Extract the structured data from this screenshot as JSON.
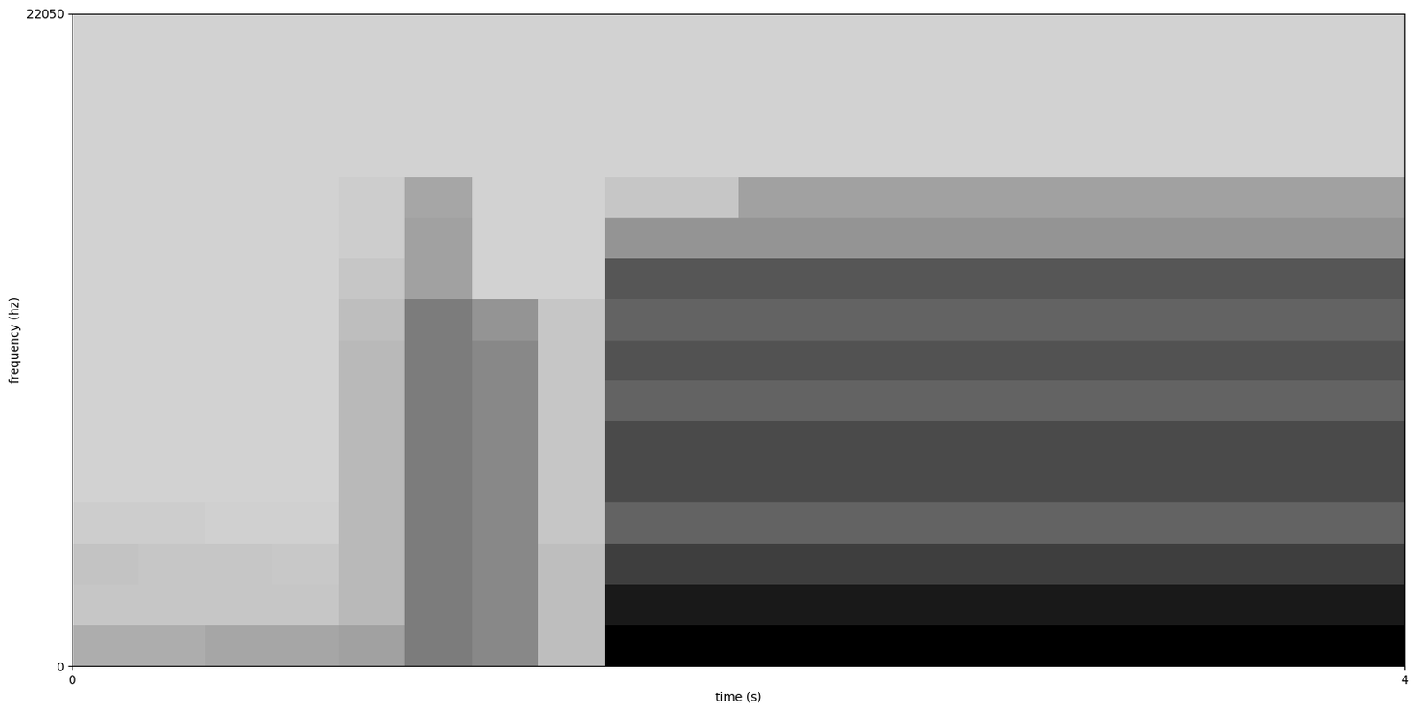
{
  "chart_data": {
    "type": "heatmap",
    "x_label": "time (s)",
    "y_label": "frequency (hz)",
    "xlim": [
      0,
      4
    ],
    "ylim": [
      0,
      22050
    ],
    "xticks": [
      0,
      4
    ],
    "yticks": [
      0,
      22050
    ],
    "grid": false,
    "x_bins": [
      0,
      0.2,
      0.4,
      0.6,
      0.8,
      1.0,
      1.2,
      1.4,
      1.6,
      1.8,
      2.0,
      2.2,
      2.4,
      2.6,
      2.8,
      3.0,
      3.2,
      3.4,
      3.6,
      3.8,
      4.0
    ],
    "y_bins": [
      0,
      1378.125,
      2756.25,
      4134.375,
      5512.5,
      6890.625,
      8268.75,
      9646.875,
      11025,
      12403.125,
      13781.25,
      15159.375,
      16537.5,
      17915.625,
      19293.75,
      20671.875,
      22050
    ],
    "cells": [
      [
        25,
        25,
        28,
        28,
        30,
        45,
        40,
        18,
        95,
        95,
        95,
        95,
        95,
        95,
        95,
        95,
        95,
        95,
        95,
        95
      ],
      [
        15,
        15,
        15,
        15,
        20,
        45,
        40,
        18,
        85,
        85,
        85,
        85,
        85,
        85,
        85,
        85,
        85,
        85,
        85,
        85
      ],
      [
        16,
        15,
        15,
        14,
        20,
        45,
        40,
        18,
        70,
        70,
        70,
        70,
        70,
        70,
        70,
        70,
        70,
        70,
        70,
        70
      ],
      [
        12,
        12,
        11,
        11,
        20,
        45,
        40,
        15,
        55,
        55,
        55,
        55,
        55,
        55,
        55,
        55,
        55,
        55,
        55,
        55
      ],
      [
        10,
        10,
        10,
        10,
        20,
        45,
        40,
        15,
        65,
        65,
        65,
        65,
        65,
        65,
        65,
        65,
        65,
        65,
        65,
        65
      ],
      [
        10,
        10,
        10,
        10,
        20,
        45,
        40,
        15,
        65,
        65,
        65,
        65,
        65,
        65,
        65,
        65,
        65,
        65,
        65,
        65
      ],
      [
        10,
        10,
        10,
        10,
        20,
        45,
        40,
        15,
        55,
        55,
        55,
        55,
        55,
        55,
        55,
        55,
        55,
        55,
        55,
        55
      ],
      [
        10,
        10,
        10,
        10,
        20,
        45,
        40,
        15,
        62,
        62,
        62,
        62,
        62,
        62,
        62,
        62,
        62,
        62,
        62,
        62
      ],
      [
        10,
        10,
        10,
        10,
        18,
        45,
        35,
        15,
        55,
        55,
        55,
        55,
        55,
        55,
        55,
        55,
        55,
        55,
        55,
        55
      ],
      [
        10,
        10,
        10,
        10,
        15,
        30,
        10,
        10,
        60,
        60,
        60,
        60,
        60,
        60,
        60,
        60,
        60,
        60,
        60,
        60
      ],
      [
        10,
        10,
        10,
        10,
        12,
        30,
        10,
        10,
        35,
        35,
        35,
        35,
        35,
        35,
        35,
        35,
        35,
        35,
        35,
        35
      ],
      [
        10,
        10,
        10,
        10,
        12,
        28,
        10,
        10,
        15,
        15,
        30,
        30,
        30,
        30,
        30,
        30,
        30,
        30,
        30,
        30
      ],
      [
        10,
        10,
        10,
        10,
        10,
        10,
        10,
        10,
        10,
        10,
        10,
        10,
        10,
        10,
        10,
        10,
        10,
        10,
        10,
        10
      ],
      [
        10,
        10,
        10,
        10,
        10,
        10,
        10,
        10,
        10,
        10,
        10,
        10,
        10,
        10,
        10,
        10,
        10,
        10,
        10,
        10
      ],
      [
        10,
        10,
        10,
        10,
        10,
        10,
        10,
        10,
        10,
        10,
        10,
        10,
        10,
        10,
        10,
        10,
        10,
        10,
        10,
        10
      ],
      [
        10,
        10,
        10,
        10,
        10,
        10,
        10,
        10,
        10,
        10,
        10,
        10,
        10,
        10,
        10,
        10,
        10,
        10,
        10,
        10
      ]
    ]
  }
}
